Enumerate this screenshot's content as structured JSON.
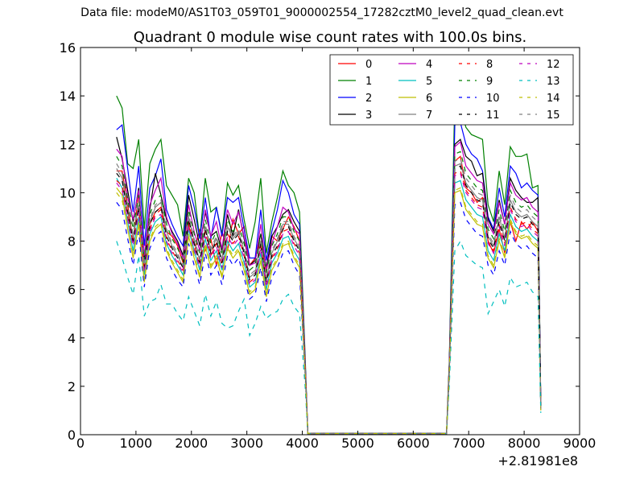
{
  "chart_data": {
    "type": "line",
    "suptitle": "Data file: modeM0/AS1T03_059T01_9000002554_17282cztM0_level2_quad_clean.evt",
    "title": "Quadrant 0 module wise count rates with 100.0s bins.",
    "xlabel": "",
    "ylabel": "",
    "x_offset_label": "+2.81981e8",
    "xlim": [
      0,
      9000
    ],
    "ylim": [
      0,
      16
    ],
    "x_ticks": [
      "0",
      "1000",
      "2000",
      "3000",
      "4000",
      "5000",
      "6000",
      "7000",
      "8000",
      "9000"
    ],
    "y_ticks": [
      "0",
      "2",
      "4",
      "6",
      "8",
      "10",
      "12",
      "14",
      "16"
    ],
    "legend_position": "top-right",
    "x": [
      650,
      750,
      850,
      950,
      1050,
      1150,
      1250,
      1350,
      1450,
      1550,
      1650,
      1750,
      1850,
      1950,
      2050,
      2150,
      2250,
      2350,
      2450,
      2550,
      2650,
      2750,
      2850,
      2950,
      3050,
      3150,
      3250,
      3350,
      3450,
      3550,
      3650,
      3750,
      3850,
      3950,
      4050,
      4100,
      6600,
      6650,
      6750,
      6850,
      6950,
      7050,
      7150,
      7250,
      7350,
      7450,
      7550,
      7650,
      7750,
      7850,
      7950,
      8050,
      8150,
      8250,
      8300
    ],
    "series": [
      {
        "name": "0",
        "color": "#ff0000",
        "dash": false,
        "values": [
          10.9,
          10.9,
          9.5,
          8.0,
          10.0,
          7.3,
          8.7,
          9.2,
          9.4,
          8.4,
          8.2,
          7.8,
          7.1,
          8.7,
          7.5,
          8.5,
          7.6,
          8.1,
          7.0,
          8.4,
          7.6,
          8.9,
          8.3,
          8.6,
          7.0,
          7.3,
          8.0,
          6.7,
          8.2,
          8.0,
          8.5,
          9.0,
          8.6,
          8.0,
          3.0,
          0.05,
          0.05,
          2.8,
          11.3,
          11.5,
          10.2,
          10.0,
          9.6,
          9.8,
          8.0,
          7.5,
          8.5,
          7.5,
          8.8,
          8.0,
          8.8,
          8.5,
          8.8,
          8.4,
          1.2
        ]
      },
      {
        "name": "1",
        "color": "#008000",
        "dash": false,
        "values": [
          14.0,
          13.5,
          11.2,
          11.0,
          12.2,
          8.5,
          11.2,
          11.8,
          12.2,
          10.3,
          9.9,
          9.5,
          8.2,
          10.6,
          10.0,
          8.1,
          10.6,
          9.2,
          9.4,
          8.3,
          10.4,
          9.9,
          10.3,
          8.9,
          7.7,
          8.8,
          10.6,
          7.5,
          8.8,
          9.8,
          10.9,
          10.3,
          10.0,
          9.2,
          3.3,
          0.05,
          0.05,
          3.0,
          14.0,
          13.5,
          12.7,
          12.4,
          12.3,
          12.2,
          9.5,
          8.8,
          10.9,
          9.5,
          11.9,
          11.5,
          11.5,
          11.6,
          10.2,
          10.3,
          1.2
        ]
      },
      {
        "name": "2",
        "color": "#0000ff",
        "dash": false,
        "values": [
          12.6,
          12.8,
          11.0,
          9.2,
          11.1,
          7.8,
          10.2,
          10.7,
          11.4,
          9.3,
          8.7,
          8.2,
          7.8,
          10.3,
          9.4,
          8.1,
          9.8,
          8.1,
          9.4,
          8.2,
          9.8,
          9.6,
          9.8,
          8.5,
          7.3,
          7.3,
          9.3,
          7.2,
          8.4,
          9.3,
          10.5,
          10.0,
          9.1,
          8.7,
          3.1,
          0.05,
          0.05,
          2.9,
          12.8,
          12.9,
          12.0,
          11.6,
          11.4,
          10.9,
          9.0,
          8.5,
          10.2,
          9.0,
          11.1,
          10.8,
          10.2,
          10.4,
          10.1,
          9.9,
          1.2
        ]
      },
      {
        "name": "3",
        "color": "#000000",
        "dash": false,
        "values": [
          12.3,
          11.4,
          10.1,
          8.8,
          10.2,
          7.3,
          9.3,
          10.8,
          9.9,
          8.9,
          8.4,
          8.0,
          7.4,
          9.9,
          8.9,
          7.8,
          9.2,
          8.2,
          8.4,
          7.6,
          9.1,
          8.2,
          9.3,
          8.1,
          7.0,
          7.2,
          8.3,
          6.9,
          8.2,
          8.6,
          9.1,
          9.3,
          8.8,
          8.4,
          3.0,
          0.05,
          0.05,
          2.9,
          12.0,
          12.2,
          11.5,
          11.3,
          10.7,
          10.8,
          8.9,
          8.4,
          9.7,
          8.7,
          10.6,
          10.1,
          9.8,
          9.6,
          9.6,
          9.8,
          1.2
        ]
      },
      {
        "name": "4",
        "color": "#bf00bf",
        "dash": false,
        "values": [
          11.8,
          11.5,
          9.8,
          8.9,
          10.1,
          7.4,
          9.5,
          10.1,
          10.6,
          9.0,
          8.3,
          7.9,
          7.3,
          9.5,
          8.4,
          7.6,
          9.3,
          8.2,
          8.8,
          7.7,
          9.3,
          8.7,
          9.2,
          8.2,
          7.0,
          7.1,
          8.7,
          6.8,
          7.9,
          8.6,
          9.4,
          9.2,
          8.5,
          8.3,
          3.0,
          0.05,
          0.05,
          2.8,
          11.9,
          12.1,
          11.1,
          10.8,
          10.5,
          10.4,
          8.7,
          8.3,
          9.6,
          8.7,
          10.4,
          9.9,
          9.7,
          9.8,
          9.4,
          9.2,
          1.2
        ]
      },
      {
        "name": "5",
        "color": "#00bfbf",
        "dash": false,
        "values": [
          10.6,
          10.2,
          8.8,
          7.6,
          9.0,
          6.6,
          8.3,
          8.8,
          9.0,
          7.9,
          7.4,
          7.0,
          6.6,
          8.5,
          7.6,
          6.8,
          8.1,
          7.2,
          7.6,
          6.8,
          8.0,
          7.6,
          7.9,
          7.1,
          6.1,
          6.3,
          7.5,
          6.0,
          7.1,
          7.5,
          8.1,
          8.2,
          7.6,
          7.2,
          2.7,
          0.05,
          0.05,
          2.6,
          10.4,
          10.5,
          9.7,
          9.4,
          9.1,
          9.0,
          7.6,
          7.2,
          8.3,
          7.6,
          9.1,
          8.6,
          8.4,
          8.5,
          8.2,
          8.0,
          1.1
        ]
      },
      {
        "name": "6",
        "color": "#bfbf00",
        "dash": false,
        "values": [
          10.2,
          9.9,
          8.5,
          7.3,
          8.7,
          6.3,
          8.0,
          8.5,
          8.7,
          7.6,
          7.1,
          6.7,
          6.3,
          8.2,
          7.3,
          6.5,
          7.8,
          6.9,
          7.3,
          6.5,
          7.7,
          7.3,
          7.6,
          6.8,
          5.8,
          6.0,
          7.2,
          5.7,
          6.8,
          7.2,
          7.8,
          7.9,
          7.3,
          6.9,
          2.6,
          0.05,
          0.05,
          2.5,
          10.0,
          10.1,
          9.3,
          9.0,
          8.7,
          8.6,
          7.3,
          6.9,
          8.0,
          7.3,
          8.8,
          8.3,
          8.1,
          8.2,
          7.9,
          7.7,
          1.1
        ]
      },
      {
        "name": "7",
        "color": "#808080",
        "dash": false,
        "values": [
          11.0,
          10.6,
          9.2,
          8.1,
          9.5,
          6.9,
          8.8,
          9.4,
          9.6,
          8.4,
          7.8,
          7.4,
          6.9,
          9.0,
          8.0,
          7.2,
          8.6,
          7.6,
          8.1,
          7.2,
          8.6,
          8.1,
          8.4,
          7.6,
          6.5,
          6.7,
          8.0,
          6.4,
          7.5,
          8.0,
          8.7,
          8.7,
          8.1,
          7.7,
          2.8,
          0.05,
          0.05,
          2.7,
          11.1,
          11.2,
          10.4,
          10.1,
          9.8,
          9.7,
          8.2,
          7.8,
          9.0,
          8.1,
          9.7,
          9.2,
          9.0,
          9.1,
          8.8,
          8.6,
          1.1
        ]
      },
      {
        "name": "8",
        "color": "#ff0000",
        "dash": true,
        "values": [
          10.5,
          10.3,
          9.0,
          7.9,
          9.3,
          6.8,
          8.5,
          9.1,
          9.3,
          8.1,
          7.6,
          7.2,
          6.8,
          8.8,
          7.8,
          7.0,
          8.4,
          7.4,
          7.9,
          7.0,
          8.3,
          7.9,
          8.2,
          7.4,
          6.3,
          6.5,
          7.8,
          6.2,
          7.3,
          7.7,
          8.4,
          8.5,
          7.9,
          7.5,
          2.8,
          0.05,
          0.05,
          2.6,
          10.8,
          10.9,
          10.1,
          9.8,
          9.5,
          9.4,
          8.0,
          7.6,
          8.7,
          7.9,
          9.4,
          8.9,
          8.7,
          8.8,
          8.5,
          8.3,
          1.1
        ]
      },
      {
        "name": "9",
        "color": "#008000",
        "dash": true,
        "values": [
          11.5,
          11.1,
          9.7,
          8.5,
          9.9,
          7.2,
          9.1,
          9.7,
          9.9,
          8.7,
          8.1,
          7.7,
          7.2,
          9.3,
          8.3,
          7.5,
          8.9,
          7.9,
          8.4,
          7.5,
          8.9,
          8.4,
          8.7,
          7.9,
          6.8,
          7.0,
          8.3,
          6.7,
          7.8,
          8.3,
          9.0,
          9.0,
          8.4,
          8.0,
          2.9,
          0.05,
          0.05,
          2.8,
          11.6,
          11.7,
          10.8,
          10.5,
          10.2,
          10.1,
          8.5,
          8.1,
          9.3,
          8.4,
          10.1,
          9.6,
          9.4,
          9.5,
          9.2,
          9.0,
          1.1
        ]
      },
      {
        "name": "10",
        "color": "#0000ff",
        "dash": true,
        "values": [
          9.6,
          9.3,
          8.1,
          7.0,
          8.4,
          6.1,
          7.7,
          8.2,
          8.4,
          7.3,
          6.8,
          6.4,
          6.1,
          7.9,
          7.0,
          6.2,
          7.5,
          6.6,
          7.0,
          6.2,
          7.4,
          7.0,
          7.3,
          6.5,
          5.6,
          5.8,
          6.9,
          5.5,
          6.5,
          6.9,
          7.5,
          7.6,
          7.0,
          6.6,
          2.5,
          0.05,
          0.05,
          2.4,
          9.5,
          9.6,
          8.9,
          8.6,
          8.3,
          8.2,
          7.0,
          6.6,
          7.6,
          7.0,
          8.4,
          7.9,
          7.7,
          7.8,
          7.5,
          7.3,
          1.0
        ]
      },
      {
        "name": "11",
        "color": "#000000",
        "dash": true,
        "values": [
          10.8,
          10.5,
          9.2,
          8.0,
          9.4,
          6.9,
          8.7,
          9.2,
          9.4,
          8.2,
          7.7,
          7.3,
          6.9,
          8.9,
          7.9,
          7.1,
          8.5,
          7.5,
          8.0,
          7.1,
          8.4,
          8.0,
          8.3,
          7.5,
          6.4,
          6.6,
          7.9,
          6.3,
          7.4,
          7.8,
          8.5,
          8.6,
          8.0,
          7.6,
          2.8,
          0.05,
          0.05,
          2.7,
          11.0,
          11.1,
          10.3,
          10.0,
          9.7,
          9.6,
          8.1,
          7.7,
          8.8,
          8.0,
          9.6,
          9.1,
          8.9,
          9.0,
          8.7,
          8.5,
          1.1
        ]
      },
      {
        "name": "12",
        "color": "#bf00bf",
        "dash": true,
        "values": [
          10.4,
          10.1,
          8.9,
          7.8,
          9.2,
          6.7,
          8.4,
          9.0,
          9.1,
          8.0,
          7.5,
          7.1,
          6.7,
          8.6,
          7.7,
          6.9,
          8.2,
          7.3,
          7.8,
          6.9,
          8.2,
          7.8,
          8.1,
          7.3,
          6.2,
          6.4,
          7.7,
          6.1,
          7.2,
          7.6,
          8.3,
          8.4,
          7.8,
          7.4,
          2.7,
          0.05,
          0.05,
          2.6,
          10.7,
          10.8,
          10.0,
          9.7,
          9.4,
          9.3,
          7.9,
          7.5,
          8.6,
          7.8,
          9.3,
          8.8,
          8.6,
          8.7,
          8.4,
          8.2,
          1.1
        ]
      },
      {
        "name": "13",
        "color": "#00bfbf",
        "dash": true,
        "values": [
          8.0,
          7.3,
          6.5,
          5.8,
          7.4,
          4.9,
          5.5,
          5.6,
          6.2,
          5.4,
          5.4,
          5.0,
          4.7,
          5.7,
          5.1,
          4.5,
          5.8,
          4.9,
          5.5,
          4.6,
          4.4,
          4.5,
          5.1,
          5.6,
          4.1,
          4.6,
          5.3,
          4.8,
          5.0,
          5.1,
          5.6,
          5.8,
          5.3,
          5.0,
          2.0,
          0.05,
          0.05,
          2.0,
          7.6,
          8.0,
          7.4,
          7.2,
          7.0,
          6.9,
          5.0,
          5.5,
          6.0,
          5.3,
          6.5,
          6.1,
          6.2,
          6.3,
          5.9,
          5.7,
          0.9
        ]
      },
      {
        "name": "14",
        "color": "#bfbf00",
        "dash": true,
        "values": [
          10.0,
          9.7,
          8.5,
          7.4,
          8.8,
          6.4,
          8.1,
          8.6,
          8.8,
          7.7,
          7.2,
          6.8,
          6.4,
          8.3,
          7.4,
          6.6,
          7.9,
          7.0,
          7.4,
          6.6,
          7.8,
          7.4,
          7.7,
          6.9,
          5.9,
          6.1,
          7.3,
          5.8,
          6.9,
          7.3,
          7.9,
          8.0,
          7.4,
          7.0,
          2.6,
          0.05,
          0.05,
          2.5,
          10.1,
          10.2,
          9.4,
          9.1,
          8.8,
          8.7,
          7.4,
          7.0,
          8.1,
          7.4,
          8.9,
          8.4,
          8.2,
          8.3,
          8.0,
          7.8,
          1.0
        ]
      },
      {
        "name": "15",
        "color": "#808080",
        "dash": true,
        "values": [
          11.2,
          10.8,
          9.5,
          8.3,
          9.7,
          7.0,
          8.9,
          9.5,
          9.7,
          8.5,
          7.9,
          7.5,
          7.0,
          9.1,
          8.1,
          7.3,
          8.7,
          7.7,
          8.2,
          7.3,
          8.7,
          8.2,
          8.5,
          7.7,
          6.6,
          6.8,
          8.1,
          6.5,
          7.6,
          8.1,
          8.8,
          8.8,
          8.2,
          7.8,
          2.9,
          0.05,
          0.05,
          2.7,
          11.3,
          11.4,
          10.6,
          10.3,
          10.0,
          9.9,
          8.3,
          7.9,
          9.1,
          8.2,
          9.9,
          9.4,
          9.2,
          9.3,
          9.0,
          8.8,
          1.1
        ]
      }
    ]
  }
}
